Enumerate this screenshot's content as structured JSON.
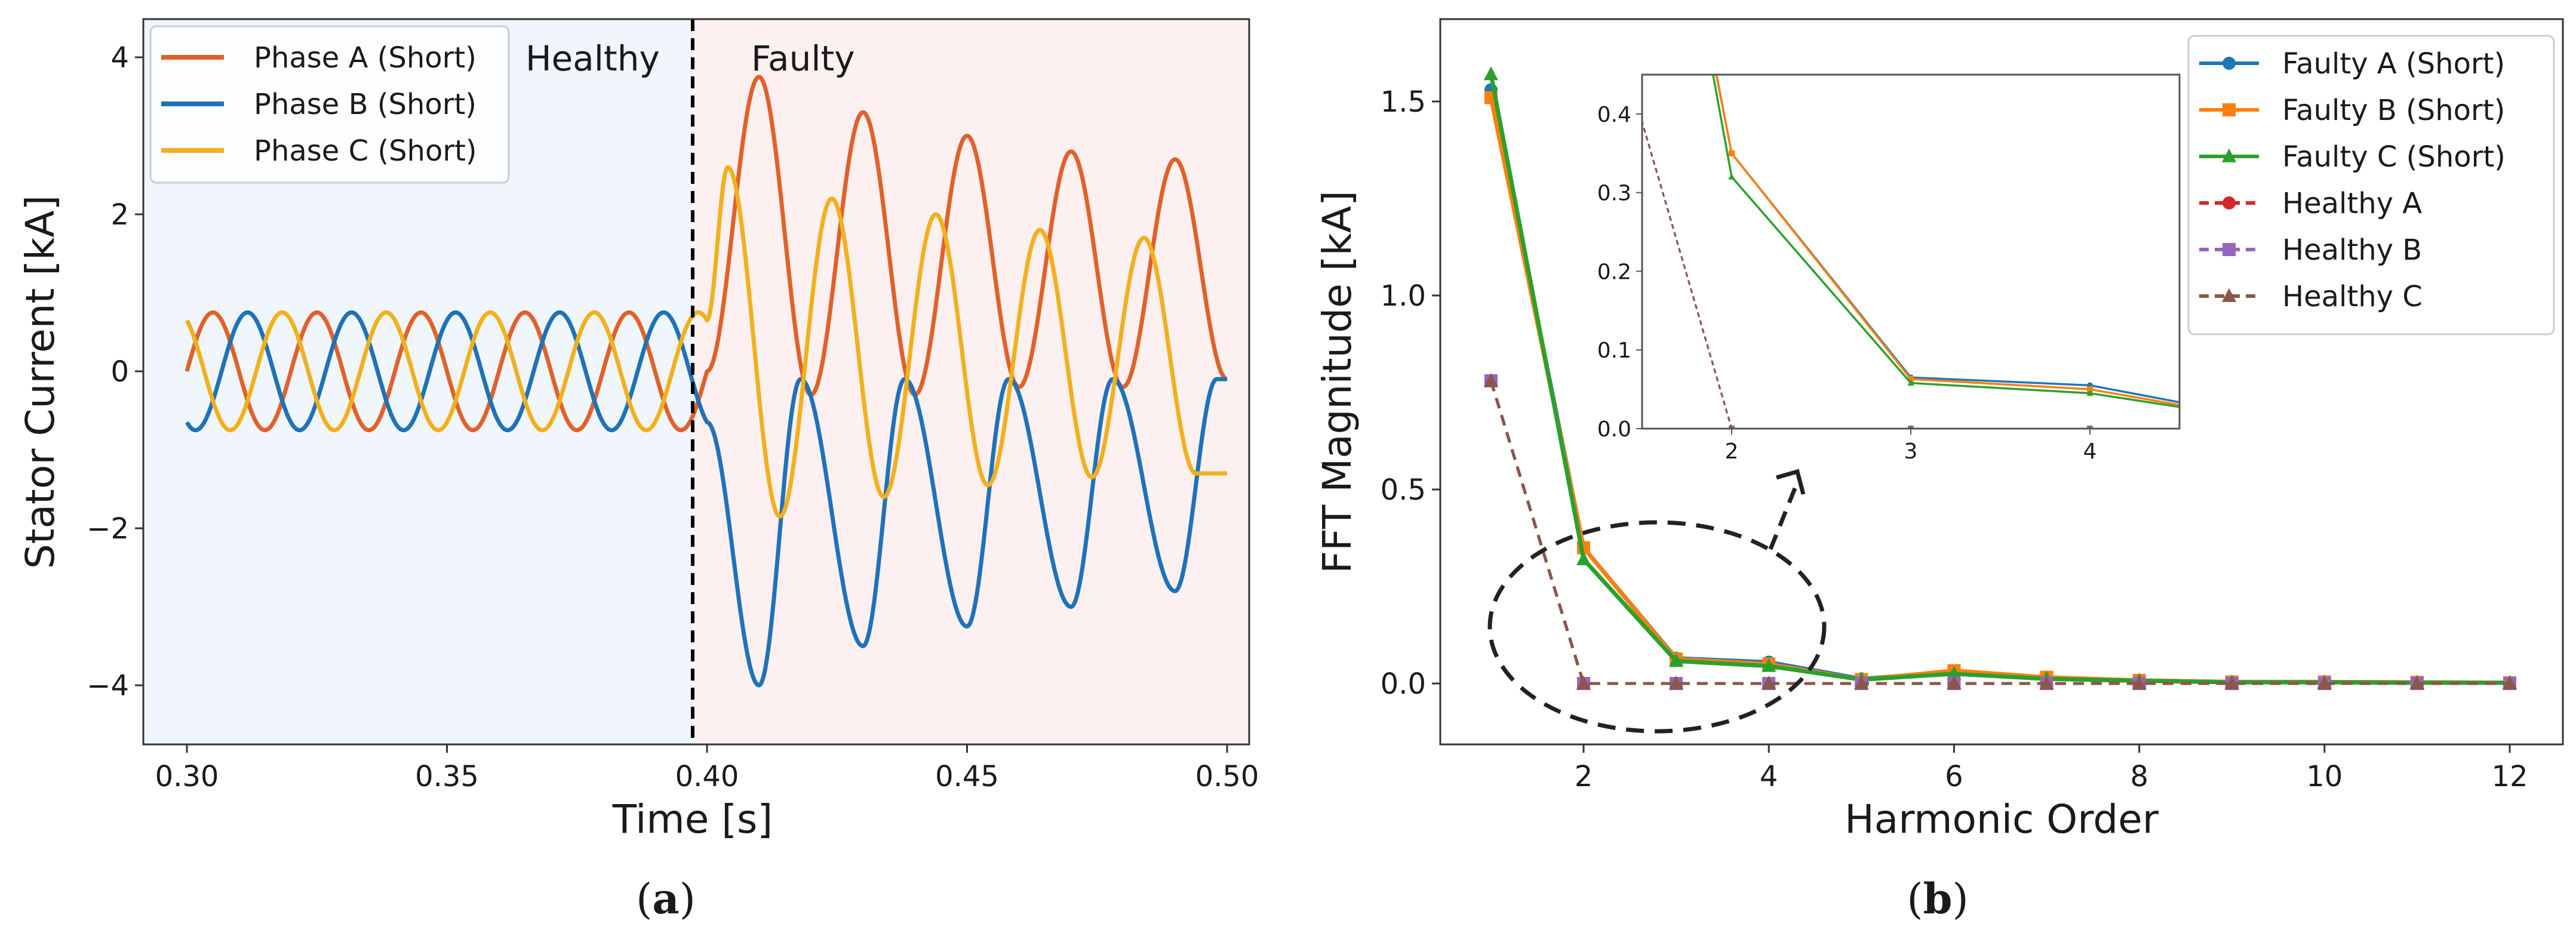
{
  "panels": {
    "a": {
      "caption_open": "(",
      "caption_letter": "a",
      "caption_close": ")"
    },
    "b": {
      "caption_open": "(",
      "caption_letter": "b",
      "caption_close": ")"
    }
  },
  "chart_data": [
    {
      "type": "line",
      "xlabel": "Time [s]",
      "ylabel": "Stator  Current  [kA]",
      "xlim": [
        0.29,
        0.5
      ],
      "ylim": [
        -4.8,
        4.4
      ],
      "xticks": [
        0.3,
        0.35,
        0.4,
        0.45,
        0.5
      ],
      "xtick_labels": [
        "0.30",
        "0.35",
        "0.40",
        "0.45",
        "0.50"
      ],
      "yticks": [
        -4,
        -2,
        0,
        2,
        4
      ],
      "ytick_labels": [
        "−4",
        "−2",
        "0",
        "2",
        "4"
      ],
      "grid": false,
      "legend_position": "top-left",
      "fault_time": 0.4,
      "region_labels": {
        "healthy": "Healthy",
        "faulty": "Faulty"
      },
      "region_colors": {
        "healthy": "#f0f6fc",
        "faulty": "#fcf0f0"
      },
      "series": [
        {
          "name": "Phase A (Short)",
          "color": "#e0612a",
          "healthy": {
            "amplitude": 0.75,
            "frequency_hz": 50,
            "phase_deg": 0
          },
          "faulty_peaks": [
            [
              0.41,
              3.75
            ],
            [
              0.43,
              3.3
            ],
            [
              0.45,
              3.0
            ],
            [
              0.47,
              2.8
            ],
            [
              0.49,
              2.7
            ]
          ],
          "faulty_troughs": [
            [
              0.42,
              -0.3
            ],
            [
              0.44,
              -0.3
            ],
            [
              0.46,
              -0.2
            ],
            [
              0.48,
              -0.2
            ],
            [
              0.5,
              -0.1
            ]
          ]
        },
        {
          "name": "Phase B (Short)",
          "color": "#1f72b8",
          "healthy": {
            "amplitude": 0.75,
            "frequency_hz": 50,
            "phase_deg": -120
          },
          "faulty_peaks": [
            [
              0.418,
              -0.1
            ],
            [
              0.438,
              -0.1
            ],
            [
              0.458,
              -0.1
            ],
            [
              0.478,
              -0.1
            ],
            [
              0.498,
              -0.1
            ]
          ],
          "faulty_troughs": [
            [
              0.41,
              -4.0
            ],
            [
              0.43,
              -3.5
            ],
            [
              0.45,
              -3.25
            ],
            [
              0.47,
              -3.0
            ],
            [
              0.49,
              -2.8
            ]
          ]
        },
        {
          "name": "Phase C (Short)",
          "color": "#f2b01e",
          "healthy": {
            "amplitude": 0.75,
            "frequency_hz": 50,
            "phase_deg": 120
          },
          "faulty_peaks": [
            [
              0.404,
              2.6
            ],
            [
              0.424,
              2.2
            ],
            [
              0.444,
              2.0
            ],
            [
              0.464,
              1.8
            ],
            [
              0.484,
              1.7
            ]
          ],
          "faulty_troughs": [
            [
              0.414,
              -1.85
            ],
            [
              0.434,
              -1.6
            ],
            [
              0.454,
              -1.45
            ],
            [
              0.474,
              -1.35
            ],
            [
              0.494,
              -1.3
            ]
          ]
        }
      ]
    },
    {
      "type": "line",
      "xlabel": "Harmonic Order",
      "ylabel": "FFT  Magnitude [kA]",
      "xlim": [
        0.4,
        12.6
      ],
      "ylim": [
        -0.15,
        1.72
      ],
      "xticks": [
        2,
        4,
        6,
        8,
        10,
        12
      ],
      "xtick_labels": [
        "2",
        "4",
        "6",
        "8",
        "10",
        "12"
      ],
      "yticks": [
        0,
        0.5,
        1.0,
        1.5
      ],
      "ytick_labels": [
        "0.0",
        "0.5",
        "1.0",
        "1.5"
      ],
      "grid": false,
      "legend_position": "top-right",
      "x": [
        1,
        2,
        3,
        4,
        5,
        6,
        7,
        8,
        9,
        10,
        11,
        12
      ],
      "series": [
        {
          "name": "Faulty A (Short)",
          "color": "#1f77b4",
          "marker": "circle",
          "dashed": false,
          "values": [
            1.53,
            0.35,
            0.065,
            0.055,
            0.012,
            0.03,
            0.015,
            0.008,
            0.004,
            0.004,
            0.003,
            0.002
          ]
        },
        {
          "name": "Faulty B (Short)",
          "color": "#ff7f0e",
          "marker": "square",
          "dashed": false,
          "values": [
            1.51,
            0.35,
            0.063,
            0.05,
            0.01,
            0.033,
            0.016,
            0.008,
            0.004,
            0.004,
            0.003,
            0.002
          ]
        },
        {
          "name": "Faulty C (Short)",
          "color": "#2ca02c",
          "marker": "triangle",
          "dashed": false,
          "values": [
            1.57,
            0.32,
            0.058,
            0.045,
            0.01,
            0.025,
            0.012,
            0.007,
            0.003,
            0.003,
            0.002,
            0.002
          ]
        },
        {
          "name": "Healthy A",
          "color": "#d62728",
          "marker": "circle",
          "dashed": true,
          "values": [
            0.78,
            0.0,
            0.0,
            0.0,
            0.0,
            0.0,
            0.0,
            0.0,
            0.0,
            0.0,
            0.0,
            0.0
          ]
        },
        {
          "name": "Healthy B",
          "color": "#9467bd",
          "marker": "square",
          "dashed": true,
          "values": [
            0.78,
            0.0,
            0.0,
            0.0,
            0.0,
            0.0,
            0.0,
            0.0,
            0.0,
            0.0,
            0.0,
            0.0
          ]
        },
        {
          "name": "Healthy C",
          "color": "#8c564b",
          "marker": "triangle",
          "dashed": true,
          "values": [
            0.78,
            0.0,
            0.0,
            0.0,
            0.0,
            0.0,
            0.0,
            0.0,
            0.0,
            0.0,
            0.0,
            0.0
          ]
        }
      ],
      "inset": {
        "xlim": [
          1.5,
          4.5
        ],
        "ylim": [
          0,
          0.45
        ],
        "xticks": [
          2,
          3,
          4
        ],
        "xtick_labels": [
          "2",
          "3",
          "4"
        ],
        "yticks": [
          0,
          0.1,
          0.2,
          0.3,
          0.4
        ],
        "ytick_labels": [
          "0.0",
          "0.1",
          "0.2",
          "0.3",
          "0.4"
        ]
      },
      "zoom_region": {
        "x_center": 2.75,
        "y_center": 0.15
      }
    }
  ]
}
